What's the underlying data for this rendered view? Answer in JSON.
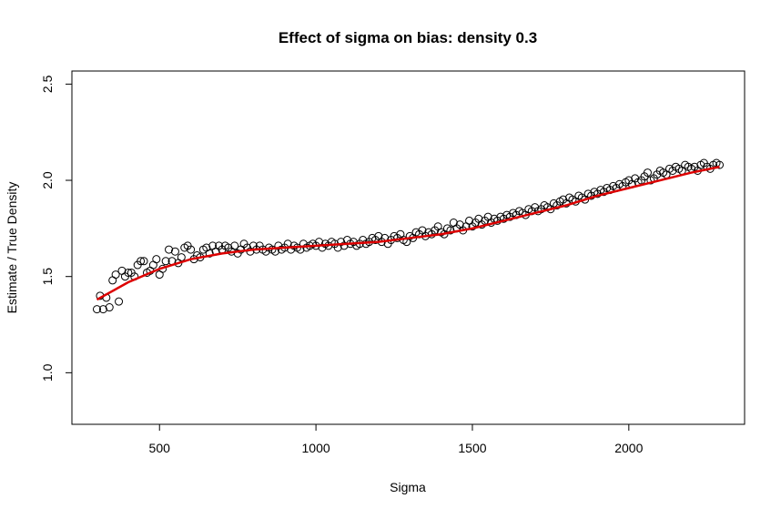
{
  "chart_data": {
    "type": "scatter",
    "title": "Effect of sigma on bias: density 0.3",
    "x_label": "Sigma",
    "y_label": "Estimate / True Density",
    "x": [
      300,
      310,
      320,
      330,
      340,
      350,
      360,
      370,
      380,
      390,
      400,
      410,
      420,
      430,
      440,
      450,
      460,
      470,
      480,
      490,
      500,
      510,
      520,
      530,
      540,
      550,
      560,
      570,
      580,
      590,
      600,
      610,
      620,
      630,
      640,
      650,
      660,
      670,
      680,
      690,
      700,
      710,
      720,
      730,
      740,
      750,
      760,
      770,
      780,
      790,
      800,
      810,
      820,
      830,
      840,
      850,
      860,
      870,
      880,
      890,
      900,
      910,
      920,
      930,
      940,
      950,
      960,
      970,
      980,
      990,
      1000,
      1010,
      1020,
      1030,
      1040,
      1050,
      1060,
      1070,
      1080,
      1090,
      1100,
      1110,
      1120,
      1130,
      1140,
      1150,
      1160,
      1170,
      1180,
      1190,
      1200,
      1210,
      1220,
      1230,
      1240,
      1250,
      1260,
      1270,
      1280,
      1290,
      1300,
      1310,
      1320,
      1330,
      1340,
      1350,
      1360,
      1370,
      1380,
      1390,
      1400,
      1410,
      1420,
      1430,
      1440,
      1450,
      1460,
      1470,
      1480,
      1490,
      1500,
      1510,
      1520,
      1530,
      1540,
      1550,
      1560,
      1570,
      1580,
      1590,
      1600,
      1610,
      1620,
      1630,
      1640,
      1650,
      1660,
      1670,
      1680,
      1690,
      1700,
      1710,
      1720,
      1730,
      1740,
      1750,
      1760,
      1770,
      1780,
      1790,
      1800,
      1810,
      1820,
      1830,
      1840,
      1850,
      1860,
      1870,
      1880,
      1890,
      1900,
      1910,
      1920,
      1930,
      1940,
      1950,
      1960,
      1970,
      1980,
      1990,
      2000,
      2010,
      2020,
      2030,
      2040,
      2050,
      2060,
      2070,
      2080,
      2090,
      2100,
      2110,
      2120,
      2130,
      2140,
      2150,
      2160,
      2170,
      2180,
      2190,
      2200,
      2210,
      2220,
      2230,
      2240,
      2250,
      2260,
      2270,
      2280,
      2290
    ],
    "series": [
      {
        "color": "#000000",
        "values": [
          1.33,
          1.4,
          1.33,
          1.39,
          1.34,
          1.48,
          1.51,
          1.37,
          1.53,
          1.5,
          1.52,
          1.52,
          1.5,
          1.56,
          1.58,
          1.58,
          1.52,
          1.53,
          1.56,
          1.59,
          1.51,
          1.54,
          1.58,
          1.64,
          1.58,
          1.63,
          1.57,
          1.6,
          1.65,
          1.66,
          1.64,
          1.59,
          1.61,
          1.6,
          1.64,
          1.65,
          1.62,
          1.66,
          1.63,
          1.66,
          1.64,
          1.66,
          1.65,
          1.63,
          1.66,
          1.62,
          1.64,
          1.67,
          1.65,
          1.63,
          1.66,
          1.64,
          1.66,
          1.64,
          1.63,
          1.65,
          1.64,
          1.63,
          1.66,
          1.64,
          1.65,
          1.67,
          1.64,
          1.66,
          1.65,
          1.64,
          1.67,
          1.65,
          1.66,
          1.67,
          1.66,
          1.68,
          1.65,
          1.67,
          1.66,
          1.68,
          1.67,
          1.65,
          1.68,
          1.66,
          1.69,
          1.67,
          1.68,
          1.66,
          1.67,
          1.69,
          1.67,
          1.68,
          1.7,
          1.69,
          1.71,
          1.68,
          1.7,
          1.67,
          1.69,
          1.71,
          1.7,
          1.72,
          1.69,
          1.68,
          1.71,
          1.7,
          1.73,
          1.72,
          1.74,
          1.71,
          1.73,
          1.72,
          1.74,
          1.76,
          1.73,
          1.72,
          1.75,
          1.74,
          1.78,
          1.75,
          1.77,
          1.74,
          1.76,
          1.79,
          1.76,
          1.78,
          1.8,
          1.77,
          1.79,
          1.81,
          1.78,
          1.8,
          1.79,
          1.81,
          1.8,
          1.82,
          1.81,
          1.83,
          1.82,
          1.84,
          1.83,
          1.82,
          1.85,
          1.84,
          1.86,
          1.84,
          1.85,
          1.87,
          1.86,
          1.85,
          1.88,
          1.87,
          1.89,
          1.9,
          1.88,
          1.91,
          1.9,
          1.89,
          1.92,
          1.91,
          1.9,
          1.93,
          1.92,
          1.94,
          1.93,
          1.95,
          1.94,
          1.96,
          1.95,
          1.97,
          1.96,
          1.98,
          1.97,
          1.99,
          2.0,
          1.98,
          2.01,
          1.99,
          2.0,
          2.02,
          2.04,
          2.0,
          2.01,
          2.03,
          2.05,
          2.04,
          2.03,
          2.06,
          2.05,
          2.07,
          2.06,
          2.05,
          2.08,
          2.07,
          2.06,
          2.07,
          2.05,
          2.08,
          2.09,
          2.07,
          2.06,
          2.08,
          2.09,
          2.08
        ]
      }
    ],
    "fit": {
      "color": "#dd0000",
      "x": [
        300,
        400,
        500,
        600,
        700,
        800,
        900,
        1000,
        1100,
        1200,
        1300,
        1400,
        1500,
        1600,
        1700,
        1800,
        1900,
        2000,
        2100,
        2200,
        2290
      ],
      "values": [
        1.38,
        1.47,
        1.54,
        1.59,
        1.62,
        1.64,
        1.65,
        1.66,
        1.67,
        1.68,
        1.7,
        1.72,
        1.75,
        1.79,
        1.83,
        1.87,
        1.92,
        1.96,
        2.0,
        2.04,
        2.07
      ]
    },
    "xlim": [
      220,
      2370
    ],
    "ylim": [
      0.732,
      2.568
    ],
    "xticks": [
      500,
      1000,
      1500,
      2000
    ],
    "yticks": [
      {
        "value": 1,
        "label": "1.0"
      },
      1.5,
      {
        "value": 2,
        "label": "2.0"
      },
      2.5
    ]
  }
}
